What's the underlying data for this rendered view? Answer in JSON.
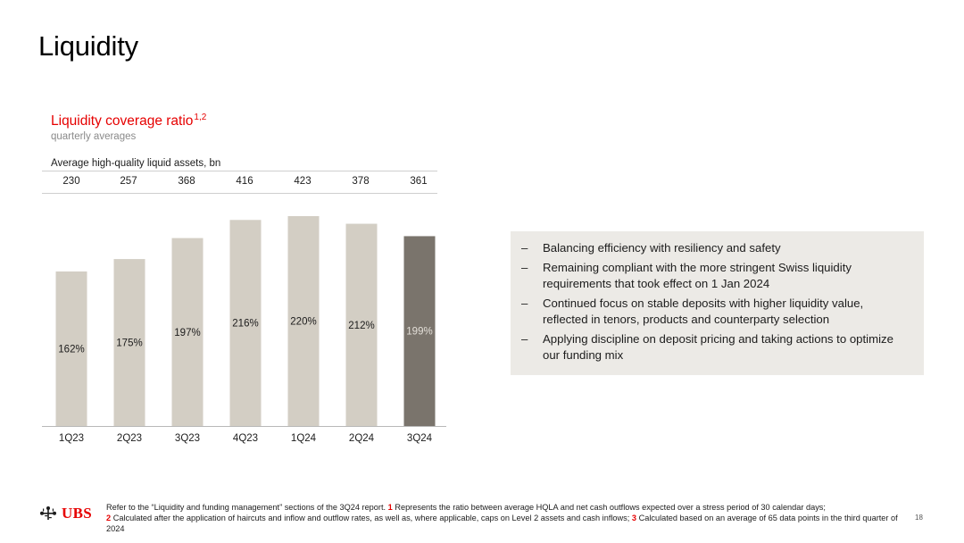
{
  "slide": {
    "title": "Liquidity",
    "page_number": "18"
  },
  "chart_header": {
    "title": "Liquidity coverage ratio",
    "title_superscript": "1,2",
    "subtitle": "quarterly averages",
    "hqla_label": "Average high-quality liquid assets, bn",
    "hqla_values": [
      "230",
      "257",
      "368",
      "416",
      "423",
      "378",
      "361"
    ]
  },
  "chart_data": {
    "type": "bar",
    "title": "Liquidity coverage ratio",
    "categories": [
      "1Q23",
      "2Q23",
      "3Q23",
      "4Q23",
      "1Q24",
      "2Q24",
      "3Q24"
    ],
    "values": [
      162,
      175,
      197,
      216,
      220,
      212,
      199
    ],
    "value_labels": [
      "162%",
      "175%",
      "197%",
      "216%",
      "220%",
      "212%",
      "199%"
    ],
    "ylim": [
      0,
      220
    ],
    "grid": false,
    "legend": "none",
    "colors": {
      "bar": "#d3cec4",
      "highlight_bar": "#7a746c",
      "highlight_label": "#e2ded7",
      "label": "#1c1c1c",
      "axis": "#b8b8b8"
    },
    "highlight_index": 6
  },
  "bullets": [
    "Balancing efficiency with resiliency and safety",
    "Remaining compliant with the more stringent Swiss liquidity requirements that took effect on 1 Jan 2024",
    "Continued focus on stable deposits with higher liquidity value, reflected in tenors, products and counterparty selection",
    "Applying discipline on deposit pricing and taking actions to optimize our funding mix"
  ],
  "bullet_marker": "–",
  "footer": {
    "logo_text": "UBS",
    "logo_icon": "ubs-keys-icon",
    "note_intro": "Refer to the “Liquidity and funding management” sections of the 3Q24 report.",
    "notes": [
      {
        "num": "1",
        "text": "Represents the ratio between average HQLA and net cash outflows expected over a stress period of 30 calendar days;"
      },
      {
        "num": "2",
        "text": "Calculated after the application of haircuts and inflow and outflow rates, as well as, where applicable, caps on Level 2 assets and cash inflows;"
      },
      {
        "num": "3",
        "text": "Calculated based on an average of 65 data points in the third quarter of 2024"
      }
    ]
  }
}
